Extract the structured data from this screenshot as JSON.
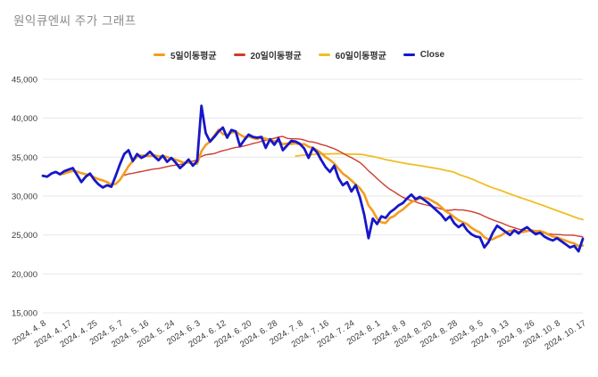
{
  "title": "원익큐엔씨 주가 그래프",
  "legend": [
    {
      "label": "5일이동평균",
      "color": "#f49d1d"
    },
    {
      "label": "20일이동평균",
      "color": "#ce3c2d"
    },
    {
      "label": "60일이동평균",
      "color": "#f0be23"
    },
    {
      "label": "Close",
      "color": "#1717c9"
    }
  ],
  "chart_data": {
    "type": "line",
    "title": "원익큐엔씨 주가 그래프",
    "xlabel": "",
    "ylabel": "",
    "ylim": [
      15000,
      45000
    ],
    "ytick_labels_top_to_bottom": [
      "45,000",
      "40,000",
      "35,000",
      "30,000",
      "25,000",
      "20,000",
      "15,000"
    ],
    "grid": "horizontal",
    "legend_position": "top",
    "x_tick_every": 6,
    "x_tick_labels": [
      "2024. 4. 8",
      "2024. 4. 17",
      "2024. 4. 25",
      "2024. 5. 7",
      "2024. 5. 16",
      "2024. 5. 24",
      "2024. 6. 3",
      "2024. 6. 12",
      "2024. 6. 20",
      "2024. 6. 28",
      "2024. 7. 8",
      "2024. 7. 16",
      "2024. 7. 24",
      "2024. 8. 1",
      "2024. 8. 9",
      "2024. 8. 20",
      "2024. 8. 28",
      "2024. 9. 5",
      "2024. 9. 13",
      "2024. 9. 26",
      "2024. 10. 8",
      "2024. 10. 17"
    ],
    "series": [
      {
        "name": "Close",
        "color": "#1717c9",
        "width": 2.8,
        "values": [
          32600,
          32500,
          32900,
          33100,
          32800,
          33200,
          33400,
          33600,
          32700,
          31800,
          32500,
          32900,
          32100,
          31500,
          31100,
          31400,
          31200,
          32600,
          34100,
          35400,
          35900,
          34500,
          35400,
          34900,
          35200,
          35700,
          35100,
          34600,
          35200,
          34400,
          34900,
          34300,
          33600,
          34100,
          34700,
          33900,
          34500,
          41600,
          38100,
          37000,
          37600,
          38300,
          38800,
          37500,
          38500,
          38300,
          36400,
          37200,
          37900,
          37600,
          37500,
          37600,
          36200,
          37300,
          36600,
          37400,
          35900,
          36500,
          37100,
          37000,
          36700,
          36100,
          34900,
          36200,
          35600,
          34600,
          33700,
          33100,
          33900,
          32300,
          31400,
          31800,
          30600,
          31400,
          29800,
          27600,
          24600,
          27100,
          26400,
          27400,
          27200,
          27900,
          28300,
          28800,
          29100,
          29700,
          30200,
          29600,
          29900,
          29500,
          29100,
          28600,
          28100,
          27600,
          26900,
          27400,
          26500,
          26000,
          26400,
          25600,
          25100,
          24800,
          24700,
          23400,
          24100,
          25300,
          26200,
          25800,
          25400,
          25000,
          25600,
          25200,
          25700,
          26000,
          25500,
          25100,
          25300,
          24800,
          24500,
          24300,
          24600,
          24200,
          23800,
          23400,
          23600,
          22900,
          24500
        ]
      },
      {
        "name": "5일이동평균",
        "derived": "sma",
        "window": 5,
        "color": "#f49d1d",
        "width": 2.6
      },
      {
        "name": "20일이동평균",
        "derived": "sma",
        "window": 20,
        "color": "#ce3c2d",
        "width": 1.4
      },
      {
        "name": "60일이동평균",
        "derived": "sma",
        "window": 60,
        "color": "#f0be23",
        "width": 1.8
      }
    ]
  }
}
